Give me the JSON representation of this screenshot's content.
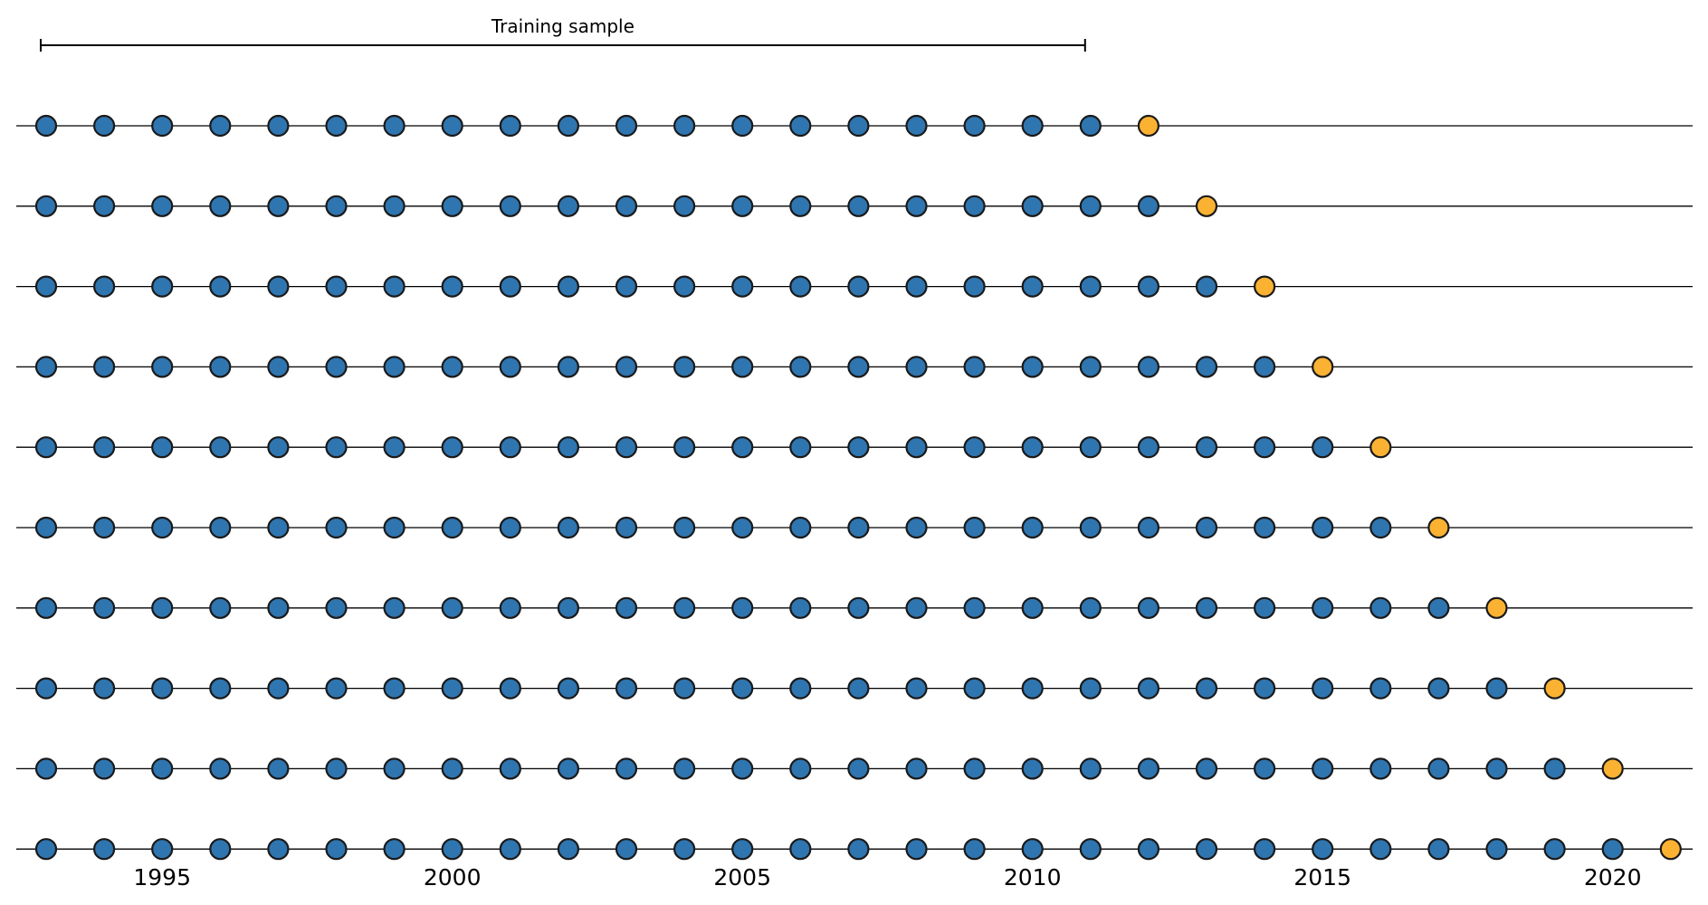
{
  "chart_data": {
    "type": "scatter",
    "description_of_encoding": "",
    "x_range": [
      1992.5,
      2021.5
    ],
    "xticks": [
      1995,
      2000,
      2005,
      2010,
      2015,
      2020
    ],
    "xtick_labels": [
      "1995",
      "2000",
      "2005",
      "2010",
      "2015",
      "2020"
    ],
    "bracket": {
      "label": "Training sample",
      "x_start": 1993,
      "x_end": 2011
    },
    "rows": [
      {
        "train_years": [
          1993,
          2011
        ],
        "test_year": 2012
      },
      {
        "train_years": [
          1993,
          2012
        ],
        "test_year": 2013
      },
      {
        "train_years": [
          1993,
          2013
        ],
        "test_year": 2014
      },
      {
        "train_years": [
          1993,
          2014
        ],
        "test_year": 2015
      },
      {
        "train_years": [
          1993,
          2015
        ],
        "test_year": 2016
      },
      {
        "train_years": [
          1993,
          2016
        ],
        "test_year": 2017
      },
      {
        "train_years": [
          1993,
          2017
        ],
        "test_year": 2018
      },
      {
        "train_years": [
          1993,
          2018
        ],
        "test_year": 2019
      },
      {
        "train_years": [
          1993,
          2019
        ],
        "test_year": 2020
      },
      {
        "train_years": [
          1993,
          2020
        ],
        "test_year": 2021
      }
    ],
    "colors": {
      "train": "#2f75b0",
      "test": "#fbb232",
      "marker_edge": "#1a1a1a",
      "line": "#000000"
    },
    "grid": false,
    "legend": "none"
  }
}
